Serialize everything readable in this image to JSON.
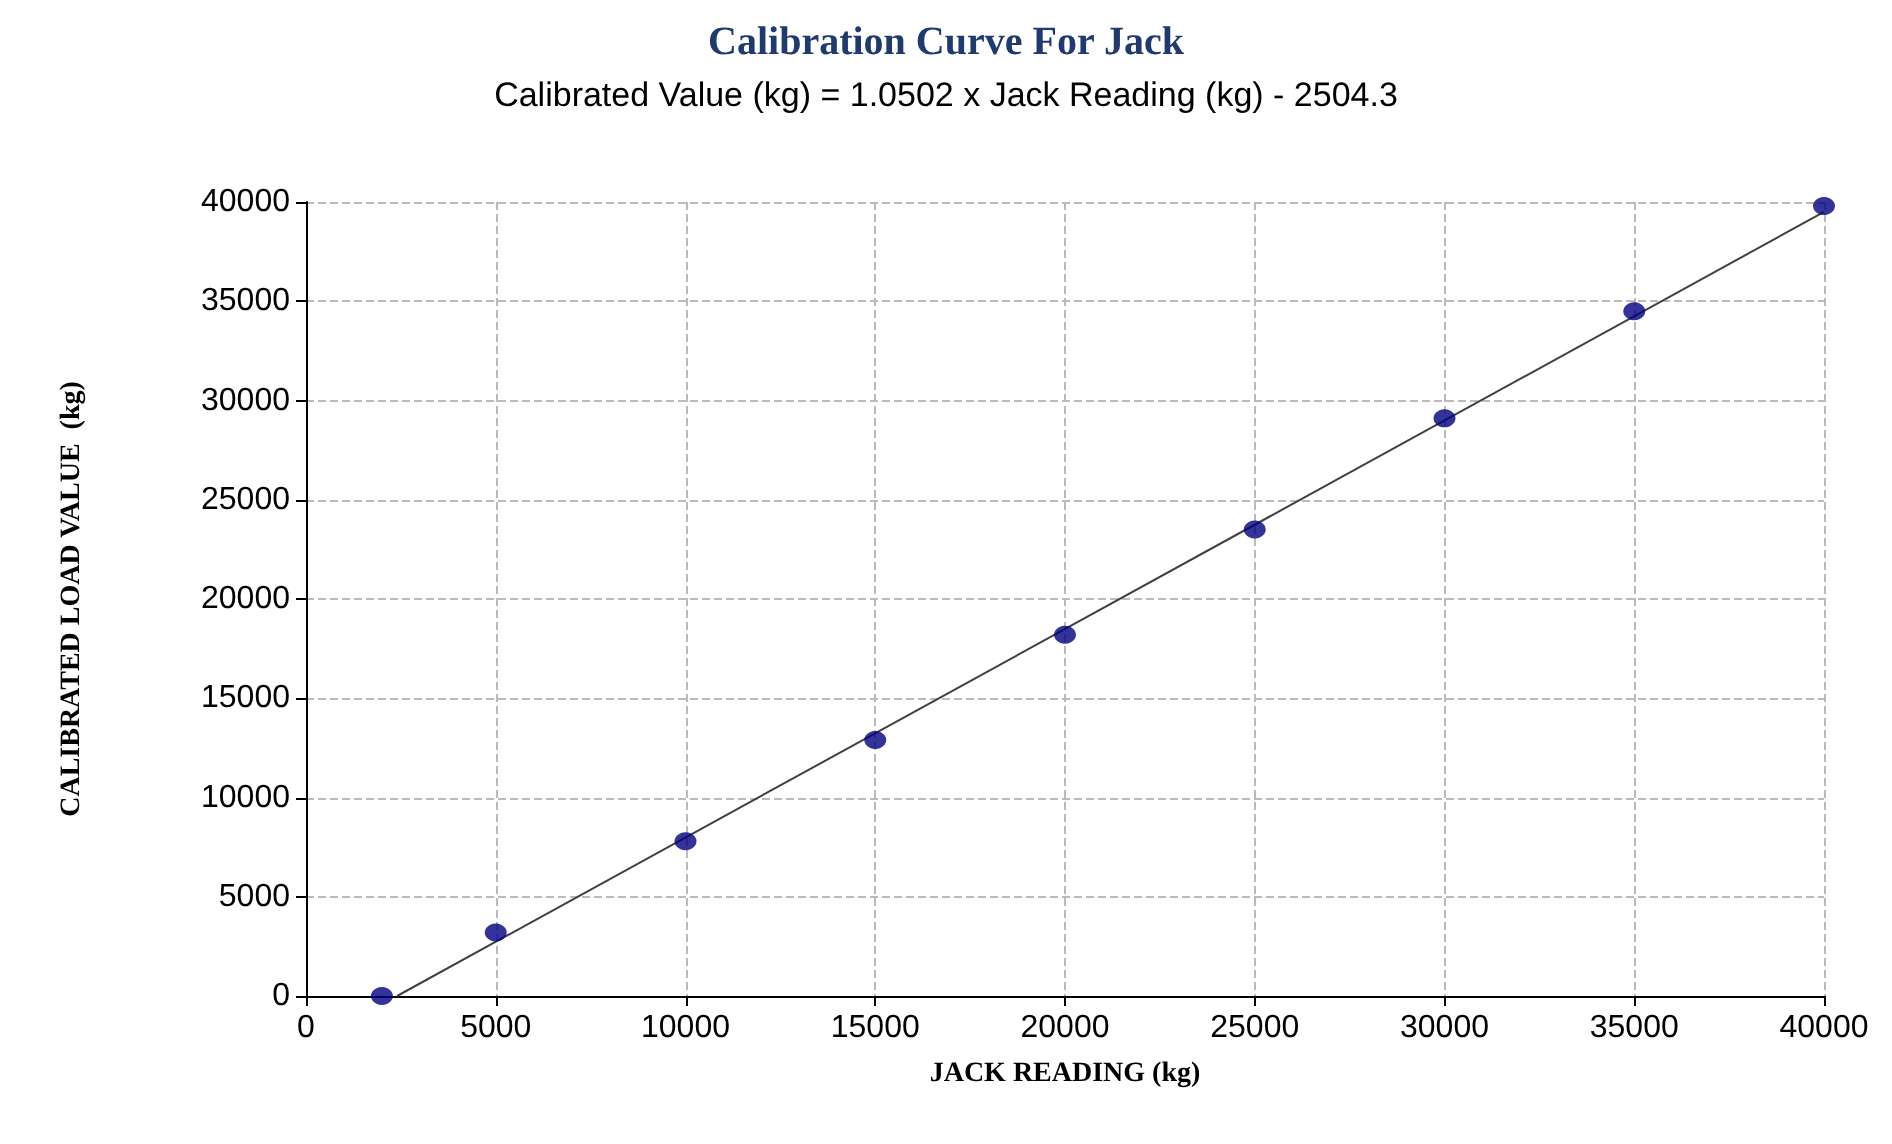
{
  "chart_data": {
    "type": "scatter",
    "title": "Calibration Curve For Jack",
    "subtitle": "Calibrated Value (kg) = 1.0502 x Jack Reading (kg) - 2504.3",
    "xlabel": "JACK READING (kg)",
    "ylabel": "CALIBRATED LOAD VALUE  (kg)",
    "series": [
      {
        "color": "#000080",
        "x": [
          2000,
          5000,
          10000,
          15000,
          20000,
          25000,
          30000,
          35000,
          40000
        ],
        "values": [
          0,
          3200,
          7800,
          12900,
          18200,
          23500,
          29100,
          34500,
          39800
        ]
      },
      {
        "type": "line",
        "color": "#404040",
        "marker": "none",
        "x": [
          2400,
          40000
        ],
        "values": [
          0,
          39500
        ]
      }
    ],
    "xlim": [
      0,
      40000
    ],
    "xticks": [
      0,
      5000,
      10000,
      15000,
      20000,
      25000,
      30000,
      35000,
      40000
    ],
    "ylim": [
      0,
      40000
    ],
    "yticks": [
      0,
      5000,
      10000,
      15000,
      20000,
      25000,
      30000,
      35000,
      40000
    ],
    "grid": true,
    "marker": "circle"
  }
}
